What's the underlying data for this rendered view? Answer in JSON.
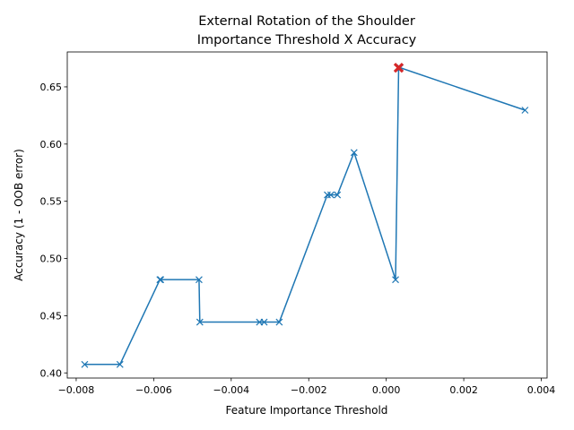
{
  "chart_data": {
    "type": "line",
    "title_lines": [
      "External Rotation of the Shoulder",
      "Importance Threshold X Accuracy"
    ],
    "xlabel": "Feature Importance Threshold",
    "ylabel": "Accuracy (1 - OOB error)",
    "xlim": [
      -0.00823,
      0.00415
    ],
    "ylim": [
      0.3955,
      0.6805
    ],
    "xticks": [
      -0.008,
      -0.006,
      -0.004,
      -0.002,
      0.0,
      0.002,
      0.004
    ],
    "xtick_labels": [
      "−0.008",
      "−0.006",
      "−0.004",
      "−0.002",
      "0.000",
      "0.002",
      "0.004"
    ],
    "yticks": [
      0.4,
      0.45,
      0.5,
      0.55,
      0.6,
      0.65
    ],
    "ytick_labels": [
      "0.40",
      "0.45",
      "0.50",
      "0.55",
      "0.60",
      "0.65"
    ],
    "grid": false,
    "series": [
      {
        "marker": "x",
        "color": "#1f77b4",
        "x": [
          -0.00778,
          -0.00687,
          -0.00584,
          -0.00582,
          -0.00483,
          -0.00481,
          -0.00327,
          -0.00315,
          -0.00276,
          -0.00152,
          -0.00143,
          -0.00126,
          -0.00083,
          0.00024,
          0.00032,
          0.00036,
          0.00358
        ],
        "y": [
          0.4074,
          0.4074,
          0.4815,
          0.4815,
          0.4815,
          0.4444,
          0.4444,
          0.4444,
          0.4444,
          0.5556,
          0.5556,
          0.5556,
          0.5926,
          0.4815,
          0.6667,
          0.6667,
          0.6296
        ]
      }
    ],
    "highlight": {
      "x": 0.00032,
      "y": 0.6667,
      "color": "#d62728",
      "marker": "X"
    }
  }
}
